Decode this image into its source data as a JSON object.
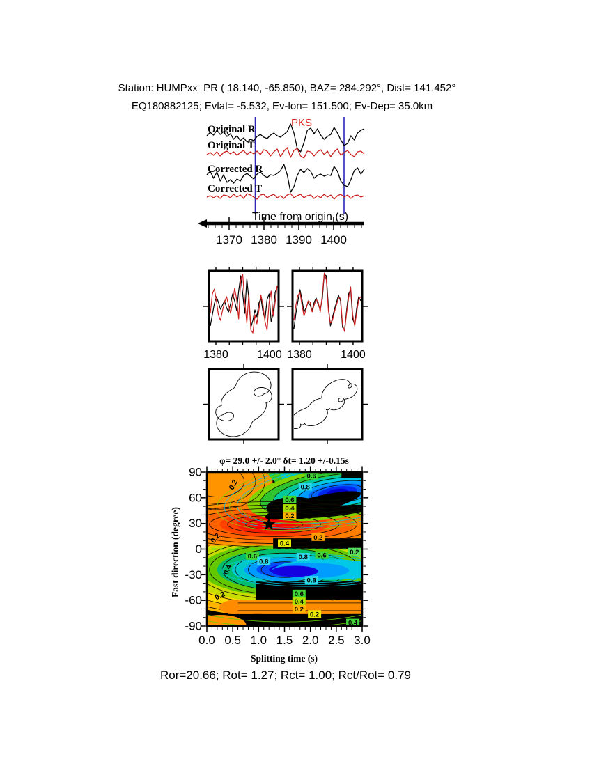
{
  "header": {
    "title": "Station: HUMPxx_PR (  18.140,  -65.850), BAZ=  284.292°, Dist=  141.452°",
    "subtitle": "EQ180882125; Evlat=  -5.532, Ev-lon= 151.500; Ev-Dep= 35.0km"
  },
  "footer": {
    "measures": "Ror=20.66; Rot= 1.27; Rct= 1.00; Rct/Rot= 0.79"
  },
  "chart_data": [
    {
      "id": "seismogram_traces",
      "type": "line",
      "xlabel": "Time from origin (s)",
      "xticks": [
        1370,
        1380,
        1390,
        1400
      ],
      "x_range": [
        1363.6,
        1408.8
      ],
      "phase_label": "PKS",
      "pick_times": [
        1377.5,
        1403.0
      ],
      "pick_color": "#2828b4",
      "traces": [
        {
          "label": "Original R",
          "color": "#000000",
          "offsets": [
            2,
            7,
            3,
            10,
            4,
            8,
            1,
            5,
            -3,
            2,
            -5,
            -1,
            -7,
            -3,
            -5,
            1,
            4,
            0,
            -2,
            3,
            6,
            2,
            0,
            4,
            8,
            19,
            6,
            -16,
            -21,
            -8,
            10,
            13,
            5,
            12,
            3,
            -3,
            1,
            4,
            14,
            6,
            -4,
            -12,
            -9,
            2,
            -4,
            6,
            10,
            12
          ]
        },
        {
          "label": "Original T",
          "color": "#cc2020",
          "offsets": [
            -2,
            1,
            -3,
            2,
            -4,
            1,
            3,
            -1,
            2,
            -3,
            1,
            4,
            -2,
            2,
            -1,
            3,
            -2,
            5,
            3,
            -4,
            2,
            6,
            -5,
            3,
            8,
            -6,
            4,
            7,
            -4,
            -7,
            3,
            2,
            -4,
            2,
            5,
            -2,
            3,
            -5,
            2,
            6,
            -3,
            1,
            4,
            -2,
            -5,
            2,
            3,
            -1
          ]
        },
        {
          "label": "Corrected R",
          "color": "#000000",
          "offsets": [
            3,
            8,
            -2,
            7,
            -6,
            3,
            -8,
            -4,
            -9,
            -3,
            -6,
            2,
            5,
            1,
            -3,
            4,
            7,
            2,
            -1,
            3,
            2,
            5,
            9,
            18,
            3,
            -22,
            -14,
            2,
            11,
            6,
            12,
            8,
            -2,
            2,
            4,
            1,
            3,
            2,
            15,
            8,
            -6,
            -12,
            -14,
            -4,
            9,
            13,
            4,
            11
          ]
        },
        {
          "label": "Corrected T",
          "color": "#cc2020",
          "offsets": [
            -1,
            1,
            -2,
            1,
            -3,
            2,
            1,
            -2,
            3,
            -1,
            2,
            -3,
            4,
            2,
            -1,
            -4,
            2,
            3,
            -2,
            1,
            3,
            -2,
            1,
            -3,
            2,
            4,
            -2,
            1,
            3,
            -2,
            1,
            2,
            -3,
            1,
            -2,
            3,
            -1,
            2,
            -4,
            1,
            3,
            -1,
            2,
            -3,
            1,
            2,
            -1,
            1
          ]
        }
      ]
    },
    {
      "id": "window_comparison_panels",
      "type": "line",
      "x_range": [
        1377.4,
        1403.4
      ],
      "xticks": [
        1380,
        1400
      ],
      "panels": [
        {
          "xtick_labels": [
            "1380",
            "1400"
          ],
          "series": [
            {
              "color": "#000000",
              "offsets": [
                -28,
                -12,
                4,
                14,
                6,
                -4,
                2,
                8,
                -2,
                -8,
                4,
                18,
                8,
                -6,
                22,
                44,
                18,
                -10,
                40,
                10,
                -30,
                -20,
                -5,
                -15,
                5,
                12,
                -8,
                -18,
                10,
                18,
                -22,
                -10,
                20,
                28
              ]
            },
            {
              "color": "#cc2020",
              "offsets": [
                -10,
                18,
                25,
                8,
                -12,
                -20,
                -6,
                6,
                14,
                2,
                -10,
                6,
                26,
                10,
                -18,
                38,
                46,
                6,
                -24,
                18,
                -34,
                -38,
                -12,
                -25,
                -5,
                16,
                2,
                -22,
                -34,
                6,
                22,
                -14,
                6,
                30
              ]
            }
          ]
        },
        {
          "xtick_labels": [
            "1380",
            "1400"
          ],
          "series": [
            {
              "color": "#000000",
              "offsets": [
                -32,
                -10,
                8,
                24,
                10,
                -8,
                -2,
                6,
                2,
                -6,
                6,
                12,
                2,
                -4,
                10,
                46,
                44,
                0,
                -28,
                -16,
                -4,
                6,
                16,
                8,
                -30,
                -34,
                -6,
                18,
                24,
                -18,
                -26,
                -2,
                14,
                8
              ]
            },
            {
              "color": "#cc2020",
              "offsets": [
                -20,
                2,
                16,
                20,
                2,
                -14,
                -4,
                8,
                6,
                -8,
                2,
                10,
                6,
                -8,
                16,
                48,
                38,
                -6,
                -24,
                -20,
                -8,
                2,
                12,
                12,
                -26,
                -36,
                -10,
                12,
                28,
                -12,
                -28,
                -8,
                10,
                14
              ]
            }
          ]
        }
      ]
    },
    {
      "id": "particle_motion_panels",
      "type": "path",
      "panels": [
        {
          "harmonics_x": [
            [
              36,
              1,
              0.3
            ],
            [
              13,
              3,
              1.2
            ],
            [
              7,
              5,
              0.0
            ],
            [
              4,
              9,
              0.5
            ]
          ],
          "harmonics_y": [
            [
              30,
              1,
              1.35
            ],
            [
              11,
              3,
              2.5
            ],
            [
              6,
              5,
              1.8
            ],
            [
              3.5,
              9,
              2.0
            ]
          ]
        },
        {
          "harmonics_x": [
            [
              38,
              1,
              0.2
            ],
            [
              10,
              2,
              1.0
            ],
            [
              6,
              6,
              0.0
            ],
            [
              3,
              11,
              0.7
            ]
          ],
          "harmonics_y": [
            [
              28,
              1,
              0.78
            ],
            [
              9,
              2,
              1.6
            ],
            [
              5,
              6,
              1.2
            ],
            [
              2.5,
              11,
              2.1
            ]
          ]
        }
      ]
    },
    {
      "id": "splitting_contour",
      "type": "contour",
      "title": "φ= 29.0 +/- 2.0° δt= 1.20 +/-0.15s",
      "xlabel": "Splitting time (s)",
      "ylabel": "Fast direction (degree)",
      "xticks": [
        "0.0",
        "0.5",
        "1.0",
        "1.5",
        "2.0",
        "2.5",
        "3.0"
      ],
      "yticks": [
        90,
        60,
        30,
        0,
        -30,
        -60,
        -90
      ],
      "x_range": [
        0,
        3
      ],
      "y_range": [
        -90,
        90
      ],
      "best_fit": {
        "phi_deg": 29.0,
        "phi_err_deg": 2.0,
        "dt_s": 1.2,
        "dt_err_s": 0.15
      },
      "star": {
        "t": 1.2,
        "deg": 29
      },
      "zero_line_color": "#00dd55",
      "contour_labels": [
        {
          "t": 2.02,
          "d": 86,
          "text": "0.6",
          "bg": "#3fd435"
        },
        {
          "t": 1.9,
          "d": 73,
          "text": "0.8",
          "bg": "#2fd8e8"
        },
        {
          "t": 1.6,
          "d": 58,
          "text": "0.6",
          "bg": "#3fd435"
        },
        {
          "t": 1.6,
          "d": 48,
          "text": "0.4",
          "bg": "#a8e000"
        },
        {
          "t": 1.6,
          "d": 39,
          "text": "0.2",
          "bg": "#ffb400"
        },
        {
          "t": 2.15,
          "d": 14,
          "text": "0.2",
          "bg": "#ff9e00"
        },
        {
          "t": 1.5,
          "d": 7,
          "text": "0.4",
          "bg": "#e8e800"
        },
        {
          "t": 0.88,
          "d": -8,
          "text": "0.6",
          "bg": "#3fd435"
        },
        {
          "t": 1.1,
          "d": -14,
          "text": "0.8",
          "bg": "#2fd8e8"
        },
        {
          "t": 1.86,
          "d": -9,
          "text": "0.8",
          "bg": "#2fd8e8"
        },
        {
          "t": 2.22,
          "d": -7,
          "text": "0.6",
          "bg": "#3fd435"
        },
        {
          "t": 2.85,
          "d": -3,
          "text": "0.2",
          "bg": "#5ae05a"
        },
        {
          "t": 2.02,
          "d": -36,
          "text": "0.8",
          "bg": "#2fd8e8"
        },
        {
          "t": 1.78,
          "d": -52,
          "text": "0.6",
          "bg": "#3fd435"
        },
        {
          "t": 1.78,
          "d": -61,
          "text": "0.4",
          "bg": "#a8e000"
        },
        {
          "t": 1.78,
          "d": -70,
          "text": "0.2",
          "bg": "#ffb400"
        },
        {
          "t": 2.08,
          "d": -76,
          "text": "0.2",
          "bg": "#e8e800"
        },
        {
          "t": 2.82,
          "d": -86,
          "text": "0.4",
          "bg": "#3fd435"
        }
      ],
      "rotated_labels": [
        {
          "t": 0.55,
          "d": 74,
          "text": "0.2",
          "rot": -62
        },
        {
          "t": 0.2,
          "d": 11,
          "text": "0.2",
          "rot": -50
        },
        {
          "t": 0.44,
          "d": -25,
          "text": "0.4",
          "rot": -68
        },
        {
          "t": 0.27,
          "d": -57,
          "text": "0.2",
          "rot": -25
        }
      ]
    }
  ]
}
